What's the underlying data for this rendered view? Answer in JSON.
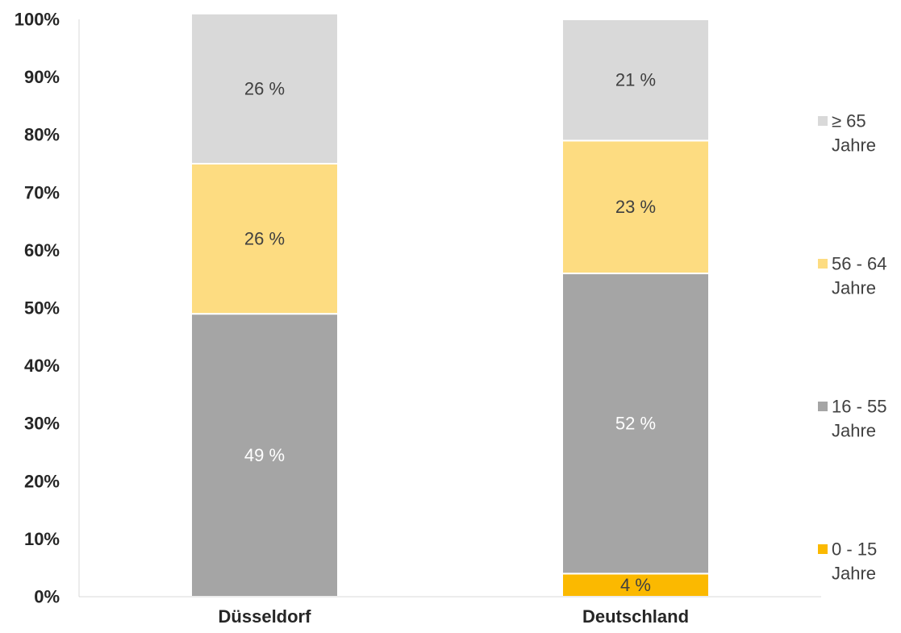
{
  "chart_data": {
    "type": "bar",
    "stacked": true,
    "categories": [
      "Düsseldorf",
      "Deutschland"
    ],
    "y_ticks": [
      "0%",
      "10%",
      "20%",
      "30%",
      "40%",
      "50%",
      "60%",
      "70%",
      "80%",
      "90%",
      "100%"
    ],
    "ylim": [
      0,
      100
    ],
    "grid": false,
    "legend_position": "right",
    "series": [
      {
        "name": "0 - 15 Jahre",
        "legend_lines": [
          "0 - 15",
          "Jahre"
        ],
        "color": "#FBB900",
        "label_color": "#404040",
        "values": [
          0,
          4
        ],
        "labels": [
          "",
          "4 %"
        ]
      },
      {
        "name": "16 - 55 Jahre",
        "legend_lines": [
          "16 - 55",
          "Jahre"
        ],
        "color": "#A5A5A5",
        "label_color": "#ffffff",
        "values": [
          49,
          52
        ],
        "labels": [
          "49 %",
          "52 %"
        ]
      },
      {
        "name": "56 - 64 Jahre",
        "legend_lines": [
          "56 - 64",
          "Jahre"
        ],
        "color": "#FDDC81",
        "label_color": "#404040",
        "values": [
          26,
          23
        ],
        "labels": [
          "26 %",
          "23 %"
        ]
      },
      {
        "name": "≥ 65 Jahre",
        "legend_lines": [
          "≥ 65",
          "Jahre"
        ],
        "color": "#D9D9D9",
        "label_color": "#404040",
        "values": [
          26,
          21
        ],
        "labels": [
          "26 %",
          "21 %"
        ]
      }
    ]
  }
}
